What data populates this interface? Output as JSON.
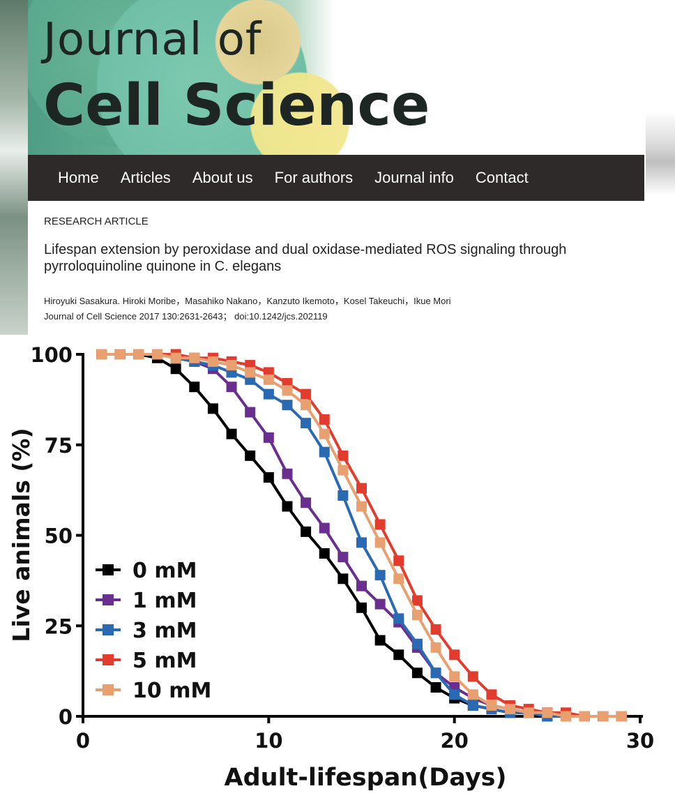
{
  "journal": {
    "title_line1": "Journal of",
    "title_line2": "Cell Science",
    "nav": [
      "Home",
      "Articles",
      "About us",
      "For authors",
      "Journal info",
      "Contact"
    ]
  },
  "article": {
    "type": "RESEARCH ARTICLE",
    "title": "Lifespan extension by peroxidase and dual oxidase-mediated ROS signaling through pyrroloquinoline quinone in C. elegans",
    "authors": "Hiroyuki Sasakura. Hiroki Moribe，Masahiko Nakano，Kanzuto Ikemoto，Kosel Takeuchi，Ikue Mori",
    "citation": "Journal of Cell Science 2017 130:2631-2643； doi:10.1242/jcs.202119"
  },
  "chart_data": {
    "type": "line",
    "title": "",
    "xlabel": "Adult-lifespan(Days)",
    "ylabel": "Live animals (%)",
    "xlim": [
      0,
      30
    ],
    "ylim": [
      0,
      100
    ],
    "xticks": [
      0,
      10,
      20,
      30
    ],
    "yticks": [
      0,
      25,
      50,
      75,
      100
    ],
    "legend_position": "bottom-left",
    "grid": false,
    "series": [
      {
        "name": "0 mM",
        "color": "#000000",
        "x": [
          1,
          2,
          3,
          4,
          5,
          6,
          7,
          8,
          9,
          10,
          11,
          12,
          13,
          14,
          15,
          16,
          17,
          18,
          19,
          20,
          21,
          22,
          23,
          24,
          25,
          26,
          27,
          28,
          29
        ],
        "y": [
          100,
          100,
          100,
          99,
          96,
          91,
          85,
          78,
          72,
          66,
          58,
          51,
          45,
          38,
          30,
          21,
          17,
          12,
          8,
          5,
          3,
          2,
          1,
          1,
          0,
          0,
          0,
          0,
          0
        ]
      },
      {
        "name": "1 mM",
        "color": "#6a2e8e",
        "x": [
          1,
          2,
          3,
          4,
          5,
          6,
          7,
          8,
          9,
          10,
          11,
          12,
          13,
          14,
          15,
          16,
          17,
          18,
          19,
          20,
          21,
          22,
          23,
          24,
          25,
          26,
          27,
          28,
          29
        ],
        "y": [
          100,
          100,
          100,
          100,
          99,
          98,
          96,
          91,
          84,
          77,
          67,
          59,
          52,
          44,
          36,
          31,
          26,
          19,
          12,
          8,
          5,
          3,
          2,
          1,
          1,
          0,
          0,
          0,
          0
        ]
      },
      {
        "name": "3 mM",
        "color": "#2a6ab3",
        "x": [
          1,
          2,
          3,
          4,
          5,
          6,
          7,
          8,
          9,
          10,
          11,
          12,
          13,
          14,
          15,
          16,
          17,
          18,
          19,
          20,
          21,
          22,
          23,
          24,
          25,
          26,
          27,
          28,
          29
        ],
        "y": [
          100,
          100,
          100,
          100,
          99,
          98,
          97,
          95,
          93,
          89,
          86,
          81,
          73,
          61,
          48,
          39,
          27,
          20,
          12,
          6,
          3,
          2,
          1,
          1,
          0,
          0,
          0,
          0,
          0
        ]
      },
      {
        "name": "5 mM",
        "color": "#e23c2e",
        "x": [
          1,
          2,
          3,
          4,
          5,
          6,
          7,
          8,
          9,
          10,
          11,
          12,
          13,
          14,
          15,
          16,
          17,
          18,
          19,
          20,
          21,
          22,
          23,
          24,
          25,
          26,
          27,
          28,
          29
        ],
        "y": [
          100,
          100,
          100,
          100,
          100,
          99,
          99,
          98,
          97,
          95,
          92,
          89,
          82,
          72,
          63,
          53,
          43,
          32,
          24,
          17,
          11,
          6,
          3,
          2,
          1,
          1,
          0,
          0,
          0
        ]
      },
      {
        "name": "10 mM",
        "color": "#e8a070",
        "x": [
          1,
          2,
          3,
          4,
          5,
          6,
          7,
          8,
          9,
          10,
          11,
          12,
          13,
          14,
          15,
          16,
          17,
          18,
          19,
          20,
          21,
          22,
          23,
          24,
          25,
          26,
          27,
          28,
          29
        ],
        "y": [
          100,
          100,
          100,
          100,
          99,
          99,
          98,
          97,
          95,
          93,
          90,
          86,
          78,
          68,
          58,
          48,
          38,
          28,
          19,
          11,
          6,
          3,
          2,
          1,
          1,
          0,
          0,
          0,
          0
        ]
      }
    ]
  }
}
